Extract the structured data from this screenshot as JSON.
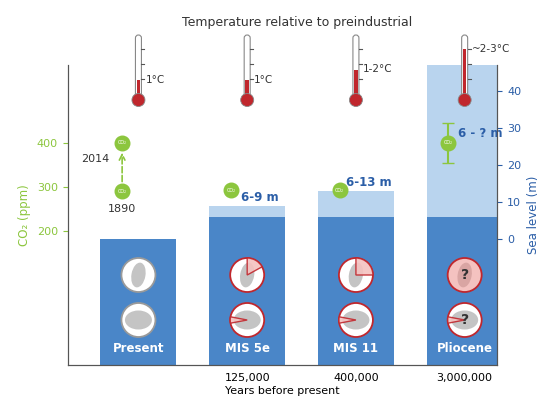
{
  "chart_data": {
    "type": "bar",
    "title": "Temperature relative to preindustrial",
    "x_label": "Years before present",
    "categories": [
      "Present",
      "MIS 5e",
      "MIS 11",
      "Pliocene"
    ],
    "years": [
      null,
      "125,000",
      "400,000",
      "3,000,000"
    ],
    "temperature_labels": [
      "1°C",
      "1°C",
      "1-2°C",
      "~2-3°C"
    ],
    "temperature_c": [
      1,
      1,
      1.5,
      2.5
    ],
    "y_label": "CO₂ (ppm)",
    "ylim": [
      -105,
      577
    ],
    "yticks": [
      200,
      300,
      400
    ],
    "y2_label": "Sea level (m)",
    "y2lim": [
      -34,
      47
    ],
    "y2ticks": [
      0,
      10,
      20,
      30,
      40
    ],
    "sea_level": {
      "color": "#4a86c8",
      "range_color": "#b9d4ee",
      "label_color": "#2b5ea7",
      "values": [
        0,
        6,
        6,
        6
      ],
      "high": [
        0,
        9,
        13,
        null
      ],
      "value_labels": [
        null,
        "6-9 m",
        "6-13 m",
        "6 - ? m"
      ]
    },
    "co2": {
      "color": "#8cc63e",
      "marker_label": "CO₂",
      "values": [
        290,
        293,
        293,
        400
      ],
      "error_low": [
        null,
        null,
        null,
        355
      ],
      "error_high": [
        null,
        null,
        null,
        445
      ],
      "baseline_label": "1890",
      "recent": {
        "value": 400,
        "label": "2014"
      }
    },
    "ice_sheets": {
      "question_label": "?",
      "greenland_loss": [
        0,
        0.17,
        0.25,
        1
      ],
      "greenland_unknown": [
        false,
        false,
        false,
        true
      ],
      "antarctica_loss": [
        0,
        0.06,
        0.06,
        0.06
      ],
      "antarctica_unknown": [
        false,
        false,
        false,
        true
      ]
    }
  }
}
